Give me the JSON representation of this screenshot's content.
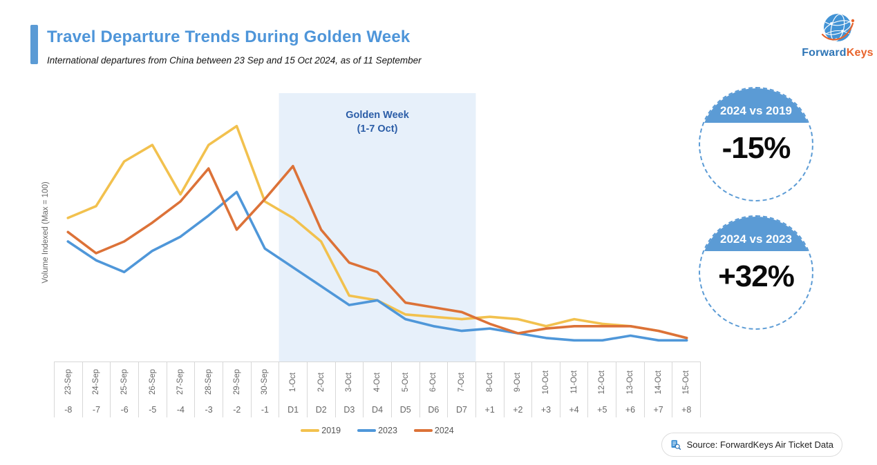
{
  "header": {
    "title": "Travel Departure Trends During Golden Week",
    "subtitle": "International departures from China between 23 Sep and 15 Oct 2024, as of 11 September"
  },
  "logo": {
    "text_primary": "Forward",
    "text_secondary": "Keys"
  },
  "colors": {
    "accent_blue": "#5B9BD5",
    "title_blue": "#4E95D9",
    "logo_orange": "#E8632B",
    "band_fill": "#E7F0FA",
    "band_label": "#2B5DA7"
  },
  "badges": [
    {
      "label": "2024 vs 2019",
      "value": "-15%"
    },
    {
      "label": "2024 vs 2023",
      "value": "+32%"
    }
  ],
  "source_note": {
    "text": "Source: ForwardKeys Air Ticket Data"
  },
  "chart_data": {
    "type": "line",
    "title": "Travel Departure Trends During Golden Week",
    "xlabel": "",
    "ylabel": "Volume Indexed (Max = 100)",
    "ylim": [
      0,
      114
    ],
    "grid": false,
    "legend_position": "bottom",
    "categories": [
      "23-Sep",
      "24-Sep",
      "25-Sep",
      "26-Sep",
      "27-Sep",
      "28-Sep",
      "29-Sep",
      "30-Sep",
      "1-Oct",
      "2-Oct",
      "3-Oct",
      "4-Oct",
      "5-Oct",
      "6-Oct",
      "7-Oct",
      "8-Oct",
      "9-Oct",
      "10-Oct",
      "11-Oct",
      "12-Oct",
      "13-Oct",
      "14-Oct",
      "15-Oct"
    ],
    "day_offset_labels": [
      "-8",
      "-7",
      "-6",
      "-5",
      "-4",
      "-3",
      "-2",
      "-1",
      "D1",
      "D2",
      "D3",
      "D4",
      "D5",
      "D6",
      "D7",
      "+1",
      "+2",
      "+3",
      "+4",
      "+5",
      "+6",
      "+7",
      "+8"
    ],
    "series": [
      {
        "name": "2019",
        "color": "#F2C14E",
        "values": [
          61,
          66,
          85,
          92,
          71,
          92,
          100,
          68,
          61,
          51,
          28,
          26,
          20,
          19,
          18,
          19,
          18,
          15,
          18,
          16,
          15,
          13,
          10
        ]
      },
      {
        "name": "2023",
        "color": "#4F97D9",
        "values": [
          51,
          43,
          38,
          47,
          53,
          62,
          72,
          48,
          40,
          32,
          24,
          26,
          18,
          15,
          13,
          14,
          12,
          10,
          9,
          9,
          11,
          9,
          9
        ]
      },
      {
        "name": "2024",
        "color": "#DC7238",
        "values": [
          55,
          46,
          51,
          59,
          68,
          82,
          56,
          69,
          83,
          56,
          42,
          38,
          25,
          23,
          21,
          16,
          12,
          14,
          15,
          15,
          15,
          13,
          10
        ]
      }
    ],
    "highlight_band": {
      "label_line1": "Golden Week",
      "label_line2": "(1-7 Oct)",
      "start_category": "1-Oct",
      "end_category": "7-Oct",
      "start_index": 8,
      "end_index": 14,
      "fill": "#E7F0FA",
      "label_color": "#2B5DA7"
    }
  }
}
